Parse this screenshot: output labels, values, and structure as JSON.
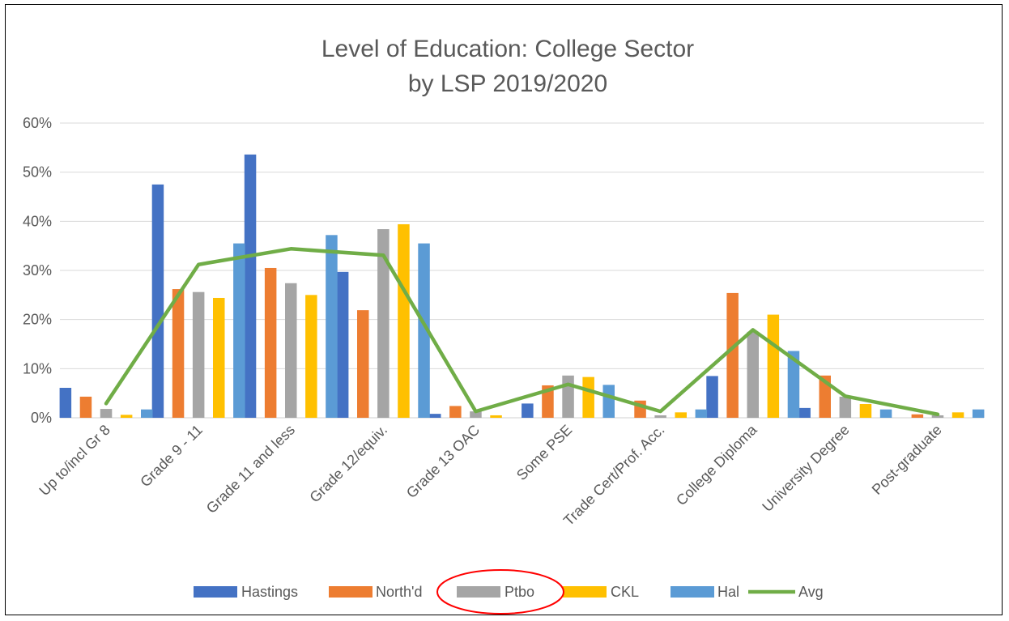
{
  "chart_data": {
    "type": "bar",
    "title": "Level of Education: College Sector",
    "subtitle": "by LSP 2019/2020",
    "xlabel": "",
    "ylabel": "",
    "ylim": [
      0,
      60
    ],
    "yticks": [
      "0%",
      "10%",
      "20%",
      "30%",
      "40%",
      "50%",
      "60%"
    ],
    "grid": true,
    "legend_position": "bottom",
    "categories": [
      "Up to/incl Gr 8",
      "Grade 9 - 11",
      "Grade 11 and less",
      "Grade 12/equiv.",
      "Grade 13 OAC",
      "Some PSE",
      "Trade Cert/Prof. Acc.",
      "College Diploma",
      "University Degree",
      "Post-graduate"
    ],
    "series": [
      {
        "name": "Hastings",
        "type": "bar",
        "color": "#4472C4",
        "values": [
          6.1,
          47.5,
          53.6,
          29.7,
          0.8,
          2.9,
          0,
          8.5,
          2.0,
          0
        ]
      },
      {
        "name": "North'd",
        "type": "bar",
        "color": "#ED7D31",
        "values": [
          4.3,
          26.2,
          30.5,
          21.9,
          2.4,
          6.6,
          3.5,
          25.4,
          8.6,
          0.7
        ]
      },
      {
        "name": "Ptbo",
        "type": "bar",
        "color": "#A5A5A5",
        "values": [
          1.8,
          25.6,
          27.4,
          38.4,
          1.3,
          8.6,
          0.5,
          17.5,
          4.3,
          0.5
        ]
      },
      {
        "name": "CKL",
        "type": "bar",
        "color": "#FFC000",
        "values": [
          0.6,
          24.4,
          25.0,
          39.4,
          0.5,
          8.3,
          1.1,
          21.0,
          2.8,
          1.1
        ]
      },
      {
        "name": "Hal",
        "type": "bar",
        "color": "#5B9BD5",
        "values": [
          1.7,
          35.5,
          37.2,
          35.5,
          0,
          6.7,
          1.7,
          13.6,
          1.7,
          1.7
        ]
      },
      {
        "name": "Avg",
        "type": "line",
        "color": "#70AD47",
        "values": [
          2.9,
          31.2,
          34.4,
          33.1,
          1.3,
          6.8,
          1.3,
          17.9,
          4.4,
          0.7
        ]
      }
    ],
    "annotations": [
      {
        "type": "ellipse",
        "target_legend": "Ptbo",
        "color": "#FF0000"
      }
    ]
  }
}
